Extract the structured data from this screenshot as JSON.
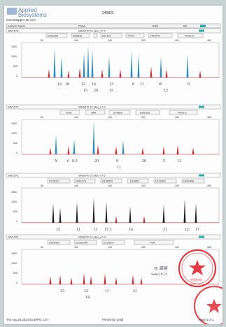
{
  "header": {
    "brand_line1": "Applied",
    "brand_line2": "Biosystems",
    "software": "GeneMapper ID v3.2",
    "report_id": "240822",
    "table_headers": [
      "Sample Name",
      "Panel",
      "BSD",
      "BS"
    ]
  },
  "panels": [
    {
      "sample": "SW1573",
      "panel_name": "SifaSTR 23 plex_v7.0",
      "markers": [
        "D3S1358",
        "D5S818",
        "D21S11",
        "D8S1358",
        "TPOX",
        "CSF1PO",
        "Penta D"
      ],
      "x_ticks": [
        "80",
        "160",
        "240",
        "320",
        "400",
        "480"
      ],
      "y_ticks": [
        "1500",
        "1000",
        "500",
        "0"
      ],
      "calls": [
        "14",
        "18",
        "12",
        "16",
        "13",
        "15",
        "8",
        "11",
        "10",
        "9"
      ],
      "sub_calls": [
        "15",
        "20",
        "12"
      ]
    },
    {
      "sample": "SW1573",
      "panel_name": "SifaSTR 23 plex_v7.0",
      "markers": [
        "TH01",
        "vWA",
        "D7S820",
        "D2S1511",
        "Penta E"
      ],
      "x_ticks": [
        "80",
        "160",
        "240",
        "320",
        "400",
        "480"
      ],
      "y_ticks": [
        "1500",
        "1000",
        "500",
        "0"
      ],
      "calls": [
        "X",
        "6",
        "9.3",
        "20",
        "9",
        "20",
        "5",
        "13"
      ],
      "sub_calls": [
        "11"
      ]
    },
    {
      "sample": "SW1573",
      "panel_name": "SifaSTR 23 plex_v7.0",
      "markers": [
        "D13S317",
        "D6S1179",
        "D16S539",
        "D18S51",
        "D12S391",
        "D4S2408"
      ],
      "x_ticks": [
        "80",
        "160",
        "240",
        "320",
        "400",
        "480"
      ],
      "y_ticks": [
        "1500",
        "1000",
        "500",
        "0"
      ],
      "calls": [
        "13",
        "11",
        "11",
        "17.3",
        "16",
        "21",
        "12",
        "17"
      ],
      "sub_calls": []
    },
    {
      "sample": "SW1573",
      "panel_name": "SifaSTR 23 plex_v7.0",
      "markers": [
        "D19S433",
        "D10S1248",
        "D13S317",
        "FGA"
      ],
      "x_ticks": [
        "80",
        "160",
        "240",
        "320",
        "400",
        "480"
      ],
      "y_ticks": [
        "1500",
        "1000",
        "500",
        "0"
      ],
      "calls": [
        "13",
        "12",
        "11",
        "21"
      ],
      "sub_calls": [
        "14"
      ]
    }
  ],
  "signature": {
    "line1": "Ty 周晓",
    "line2": "Sanyi  8.22"
  },
  "footer": {
    "printed_on": "Thu Aug 22,2024 03:40PM, CST",
    "printed_by": "Printed by: gmid",
    "page": "Page 1 of 1"
  },
  "stamp_text": "检验检测专用章",
  "colors": {
    "blue_peak": "#2a8fc6",
    "red_peak": "#d8262e",
    "black_peak": "#222222",
    "stamp": "#e0202a",
    "marker_box": "#f4f4f4"
  }
}
